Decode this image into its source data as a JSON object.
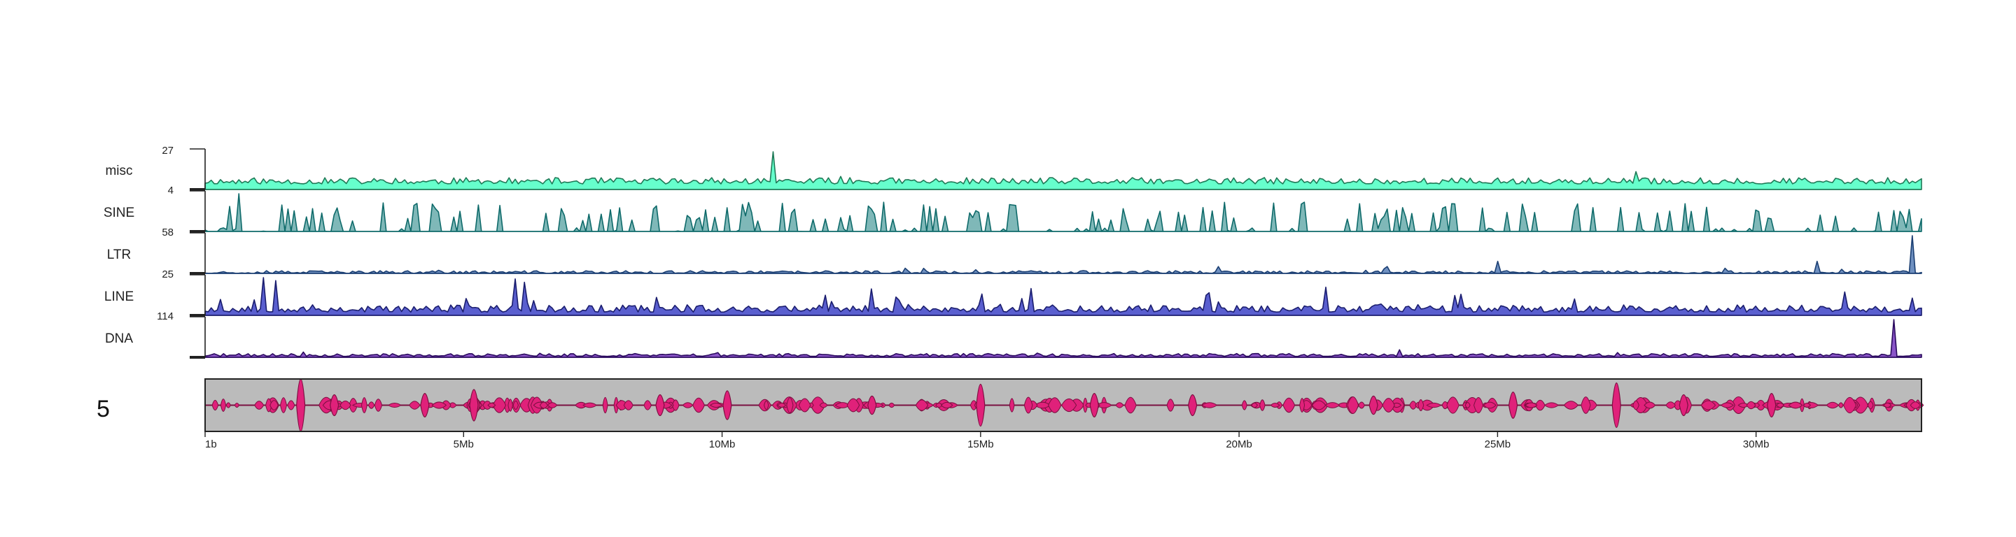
{
  "chart_data": {
    "type": "area",
    "title": "",
    "chromosome": {
      "label": "5",
      "length_bp": 33200000
    },
    "x_axis": {
      "unit": "bp",
      "range": [
        1,
        33200000
      ],
      "ticks": [
        {
          "value": 1,
          "label": "1b"
        },
        {
          "value": 5000000,
          "label": "5Mb"
        },
        {
          "value": 10000000,
          "label": "10Mb"
        },
        {
          "value": 15000000,
          "label": "15Mb"
        },
        {
          "value": 20000000,
          "label": "20Mb"
        },
        {
          "value": 25000000,
          "label": "25Mb"
        },
        {
          "value": 30000000,
          "label": "30Mb"
        }
      ]
    },
    "series": [
      {
        "name": "misc",
        "ymax": 27,
        "ymin": 4,
        "max_label": "27",
        "min_label": "4",
        "fill": "#66ffcc",
        "stroke": "#1f7a57",
        "baseline": 4,
        "noise": 4.5,
        "spike_rate": 0.02,
        "spike_height": 7,
        "seed": 11,
        "gaps": false,
        "peaks": [
          {
            "x": 10980000,
            "y": 27
          }
        ]
      },
      {
        "name": "SINE",
        "ymax": 58,
        "max_label": "",
        "min_label": "58",
        "fill": "#7fb8b8",
        "stroke": "#0e6a6a",
        "baseline": 0,
        "noise": 6,
        "spike_rate": 0.2,
        "spike_height": 45,
        "seed": 23,
        "gaps": true,
        "peaks": [
          {
            "x": 640000,
            "y": 58
          },
          {
            "x": 4050000,
            "y": 40
          },
          {
            "x": 25450000,
            "y": 42
          }
        ]
      },
      {
        "name": "LTR",
        "ymax": 25,
        "max_label": "",
        "min_label": "25",
        "fill": "#6f90c0",
        "stroke": "#1b3f73",
        "baseline": 0,
        "noise": 1.8,
        "spike_rate": 0.03,
        "spike_height": 5,
        "seed": 37,
        "gaps": false,
        "peaks": [
          {
            "x": 33050000,
            "y": 25
          },
          {
            "x": 25000000,
            "y": 8
          },
          {
            "x": 31200000,
            "y": 8
          }
        ]
      },
      {
        "name": "LINE",
        "ymax": 114,
        "max_label": "",
        "min_label": "114",
        "fill": "#5a5fcf",
        "stroke": "#1a1d6e",
        "baseline": 10,
        "noise": 22,
        "spike_rate": 0.06,
        "spike_height": 55,
        "seed": 53,
        "gaps": false,
        "peaks": [
          {
            "x": 1100000,
            "y": 114
          },
          {
            "x": 1350000,
            "y": 105
          },
          {
            "x": 6000000,
            "y": 110
          },
          {
            "x": 6150000,
            "y": 100
          },
          {
            "x": 21700000,
            "y": 85
          },
          {
            "x": 24200000,
            "y": 60
          }
        ]
      },
      {
        "name": "DNA",
        "ymax": 40,
        "max_label": "",
        "min_label": "",
        "fill": "#8a55c8",
        "stroke": "#2a0a5e",
        "baseline": 1,
        "noise": 3,
        "spike_rate": 0.02,
        "spike_height": 4,
        "seed": 71,
        "gaps": false,
        "peaks": [
          {
            "x": 32680000,
            "y": 40
          },
          {
            "x": 23100000,
            "y": 8
          }
        ]
      }
    ],
    "ideogram": {
      "background": "#bbbbbb",
      "feature_fill": "#e0217a",
      "feature_stroke": "#7a1040",
      "features": [
        {
          "x": 1850000,
          "h": 1.0
        },
        {
          "x": 2500000,
          "h": 0.4
        },
        {
          "x": 4250000,
          "h": 0.45
        },
        {
          "x": 5200000,
          "h": 0.6
        },
        {
          "x": 8800000,
          "h": 0.4
        },
        {
          "x": 10100000,
          "h": 0.55
        },
        {
          "x": 12900000,
          "h": 0.35
        },
        {
          "x": 15000000,
          "h": 0.8
        },
        {
          "x": 17200000,
          "h": 0.45
        },
        {
          "x": 19100000,
          "h": 0.4
        },
        {
          "x": 22600000,
          "h": 0.35
        },
        {
          "x": 25300000,
          "h": 0.5
        },
        {
          "x": 27300000,
          "h": 0.85
        },
        {
          "x": 28600000,
          "h": 0.4
        },
        {
          "x": 30300000,
          "h": 0.45
        }
      ]
    },
    "legend": "none",
    "grid": false
  }
}
